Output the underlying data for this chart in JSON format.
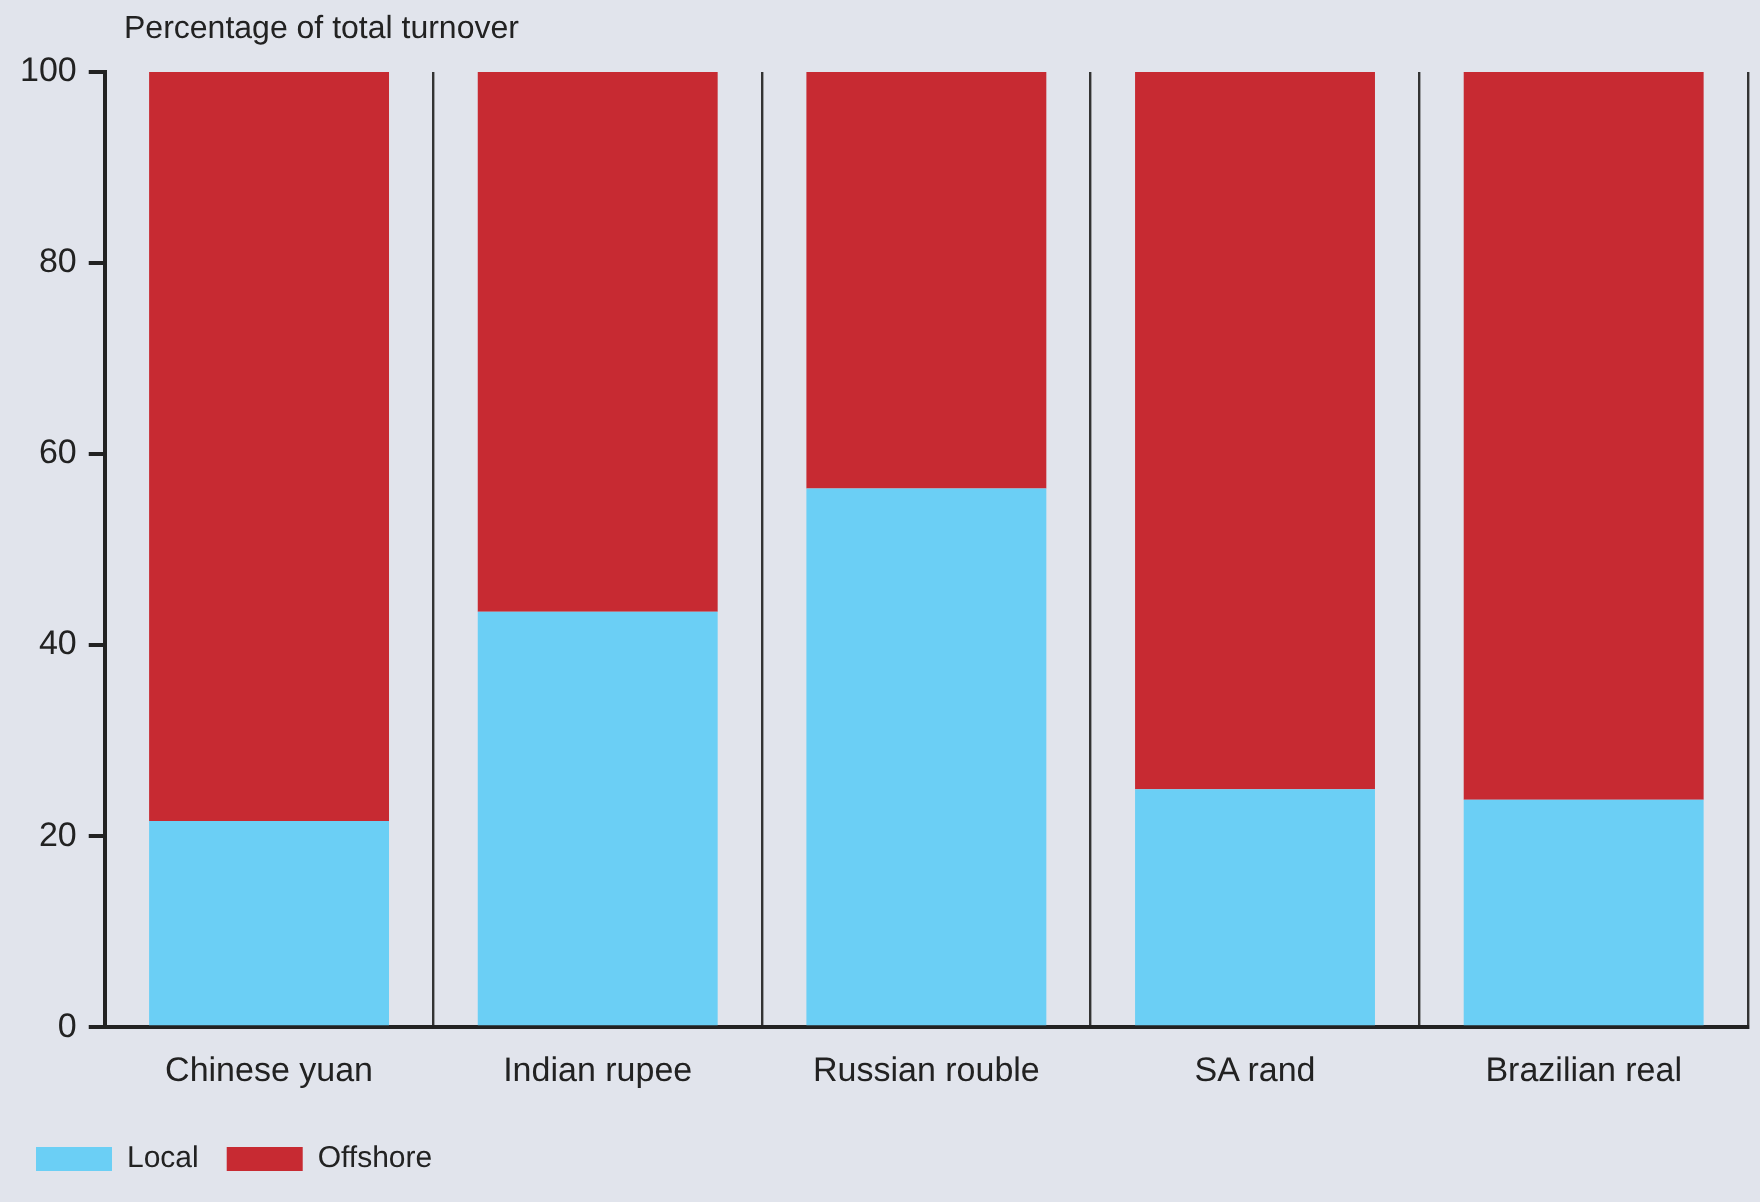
{
  "chart_data": {
    "type": "bar",
    "stacked": true,
    "ylabel": "Percentage of total turnover",
    "categories": [
      "Chinese yuan",
      "Indian rupee",
      "Russian rouble",
      "SA rand",
      "Brazilian real"
    ],
    "series": [
      {
        "name": "Local",
        "color": "#6bcff5",
        "values": [
          21.6,
          43.5,
          56.4,
          24.9,
          23.8
        ]
      },
      {
        "name": "Offshore",
        "color": "#c72a32",
        "values": [
          78.4,
          56.5,
          43.6,
          75.1,
          76.2
        ]
      }
    ],
    "ylim": [
      0,
      100
    ],
    "yticks": [
      0,
      20,
      40,
      60,
      80,
      100
    ],
    "grid": "x",
    "legend": "bottom left"
  }
}
